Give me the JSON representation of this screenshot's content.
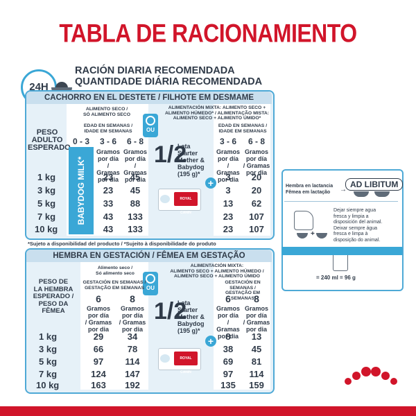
{
  "title": "TABLA DE RACIONAMIENTO",
  "subtitle": [
    "RACIÓN DIARIA RECOMENDADA",
    "QUANTIDADE DIÁRIA RECOMENDADA"
  ],
  "clock_label": "24H",
  "section1": {
    "header": "CACHORRO EN EL DESTETE / FILHOTE EM DESMAME",
    "dry_label": [
      "ALIMENTO SECO /",
      "SÓ ALIMENTO SECO"
    ],
    "mixed_label": [
      "ALIMENTACIÓN MIXTA: ALIMENTO SECO +",
      "ALIMENTO HÚMEDO* / ALIMENTAÇÃO MISTA:",
      "ALIMENTO SECO + ALIMENTO ÚMIDO*"
    ],
    "weight_label": [
      "PESO",
      "ADULTO",
      "ESPERADO"
    ],
    "age_label": [
      "EDAD EN SEMANAS /",
      "IDADE EM SEMANAS"
    ],
    "ou": "OU",
    "dry_ages": [
      "0 - 3",
      "3 - 6",
      "6 - 8"
    ],
    "mixed_ages": [
      "3 - 6",
      "6 - 8"
    ],
    "grams_label": [
      "Gramos",
      "por día",
      "/ Gramas",
      "por dia"
    ],
    "milk": "BABYDOG MILK*",
    "fraction": "1/2",
    "can_text": [
      "Lata",
      "Starter",
      "Mother &",
      "Babydog",
      "(195 g)*"
    ],
    "plus": "+",
    "rows": [
      {
        "kg": "1 kg",
        "d1": "23",
        "d2": "45",
        "m1": "3",
        "m2": "20"
      },
      {
        "kg": "3 kg",
        "d1": "23",
        "d2": "45",
        "m1": "3",
        "m2": "20"
      },
      {
        "kg": "5 kg",
        "d1": "33",
        "d2": "88",
        "m1": "13",
        "m2": "62"
      },
      {
        "kg": "7 kg",
        "d1": "43",
        "d2": "133",
        "m1": "23",
        "m2": "107"
      },
      {
        "kg": "10 kg",
        "d1": "43",
        "d2": "133",
        "m1": "23",
        "m2": "107"
      }
    ]
  },
  "footnote": "*Sujeto a disponibilidad del producto / *Sujeito à disponibilidade do produto",
  "section2": {
    "header": "HEMBRA EN GESTACIÓN / FÊMEA EM GESTAÇÃO",
    "dry_label": [
      "Alimento seco /",
      "Só alimento seco"
    ],
    "mixed_label": [
      "ALIMENTACIÓN MIXTA:",
      "ALIMENTO SECO + ALIMENTO HÚMEDO /",
      "ALIMENTO SECO + ALIMENTO ÚMIDO"
    ],
    "weight_label": [
      "PESO DE",
      "LA HEMBRA",
      "ESPERADO /",
      "PESO DA",
      "FÊMEA"
    ],
    "age_label": [
      "GESTACIÓN EN SEMANAS /",
      "GESTAÇÃO EM SEMANAS"
    ],
    "ou": "OU",
    "dry_ages": [
      "6",
      "8"
    ],
    "mixed_ages": [
      "6",
      "8"
    ],
    "grams_label": [
      "Gramos",
      "por día",
      "/ Gramas",
      "por dia"
    ],
    "fraction": "1/2",
    "can_text": [
      "Lata",
      "Starter",
      "Mother &",
      "Babydog",
      "(195 g)*"
    ],
    "plus": "+",
    "rows": [
      {
        "kg": "1 kg",
        "d1": "29",
        "d2": "34",
        "m1": "8",
        "m2": "13"
      },
      {
        "kg": "3 kg",
        "d1": "66",
        "d2": "78",
        "m1": "38",
        "m2": "45"
      },
      {
        "kg": "5 kg",
        "d1": "97",
        "d2": "114",
        "m1": "69",
        "m2": "81"
      },
      {
        "kg": "7 kg",
        "d1": "124",
        "d2": "147",
        "m1": "97",
        "m2": "114"
      },
      {
        "kg": "10 kg",
        "d1": "163",
        "d2": "192",
        "m1": "135",
        "m2": "159"
      }
    ]
  },
  "side": {
    "lact": [
      "Hembra en lactancia",
      "Fêmea em lactação"
    ],
    "adlib": "AD LIBITUM",
    "water": [
      "Dejar siempre agua",
      "fresca y limpia a",
      "disposición del animal.",
      "Deixar sempre água",
      "fresca e limpa à",
      "disposição do animal."
    ],
    "measure": "= 240 ml = 96 g"
  },
  "brand": "ROYAL CANIN",
  "colors": {
    "red": "#d1152a",
    "blue": "#3aa7d6",
    "panel": "#e6f1f8"
  }
}
